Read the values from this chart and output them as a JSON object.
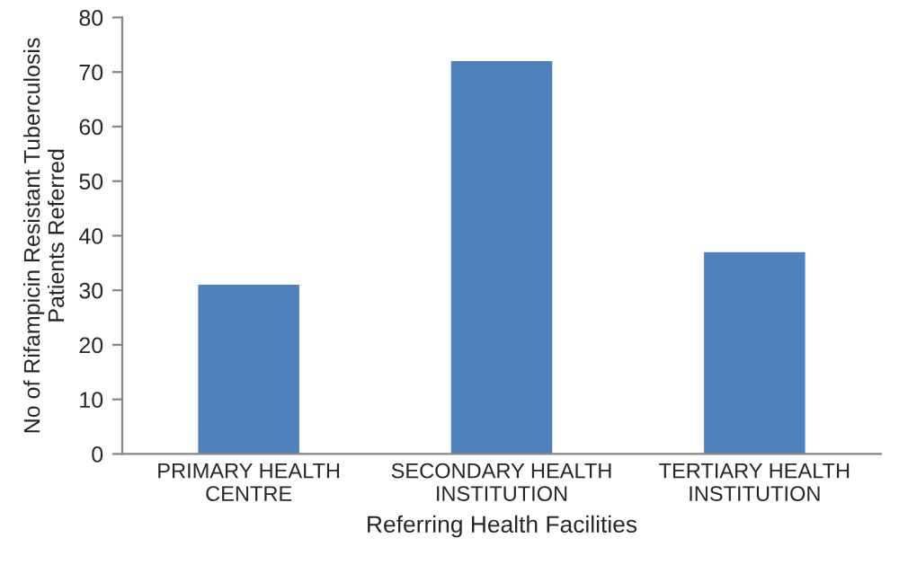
{
  "chart_data": {
    "type": "bar",
    "categories": [
      "PRIMARY HEALTH\nCENTRE",
      "SECONDARY HEALTH\nINSTITUTION",
      "TERTIARY HEALTH\nINSTITUTION"
    ],
    "values": [
      31,
      72,
      37
    ],
    "color": "#4f81bd",
    "xlabel": "Referring Health Facilities",
    "ylabel": "No of Rifampicin Resistant Tuberculosis\nPatients Referred",
    "ylim": [
      0,
      80
    ],
    "yticks": [
      0,
      10,
      20,
      30,
      40,
      50,
      60,
      70,
      80
    ],
    "grid": false,
    "legend": false
  }
}
